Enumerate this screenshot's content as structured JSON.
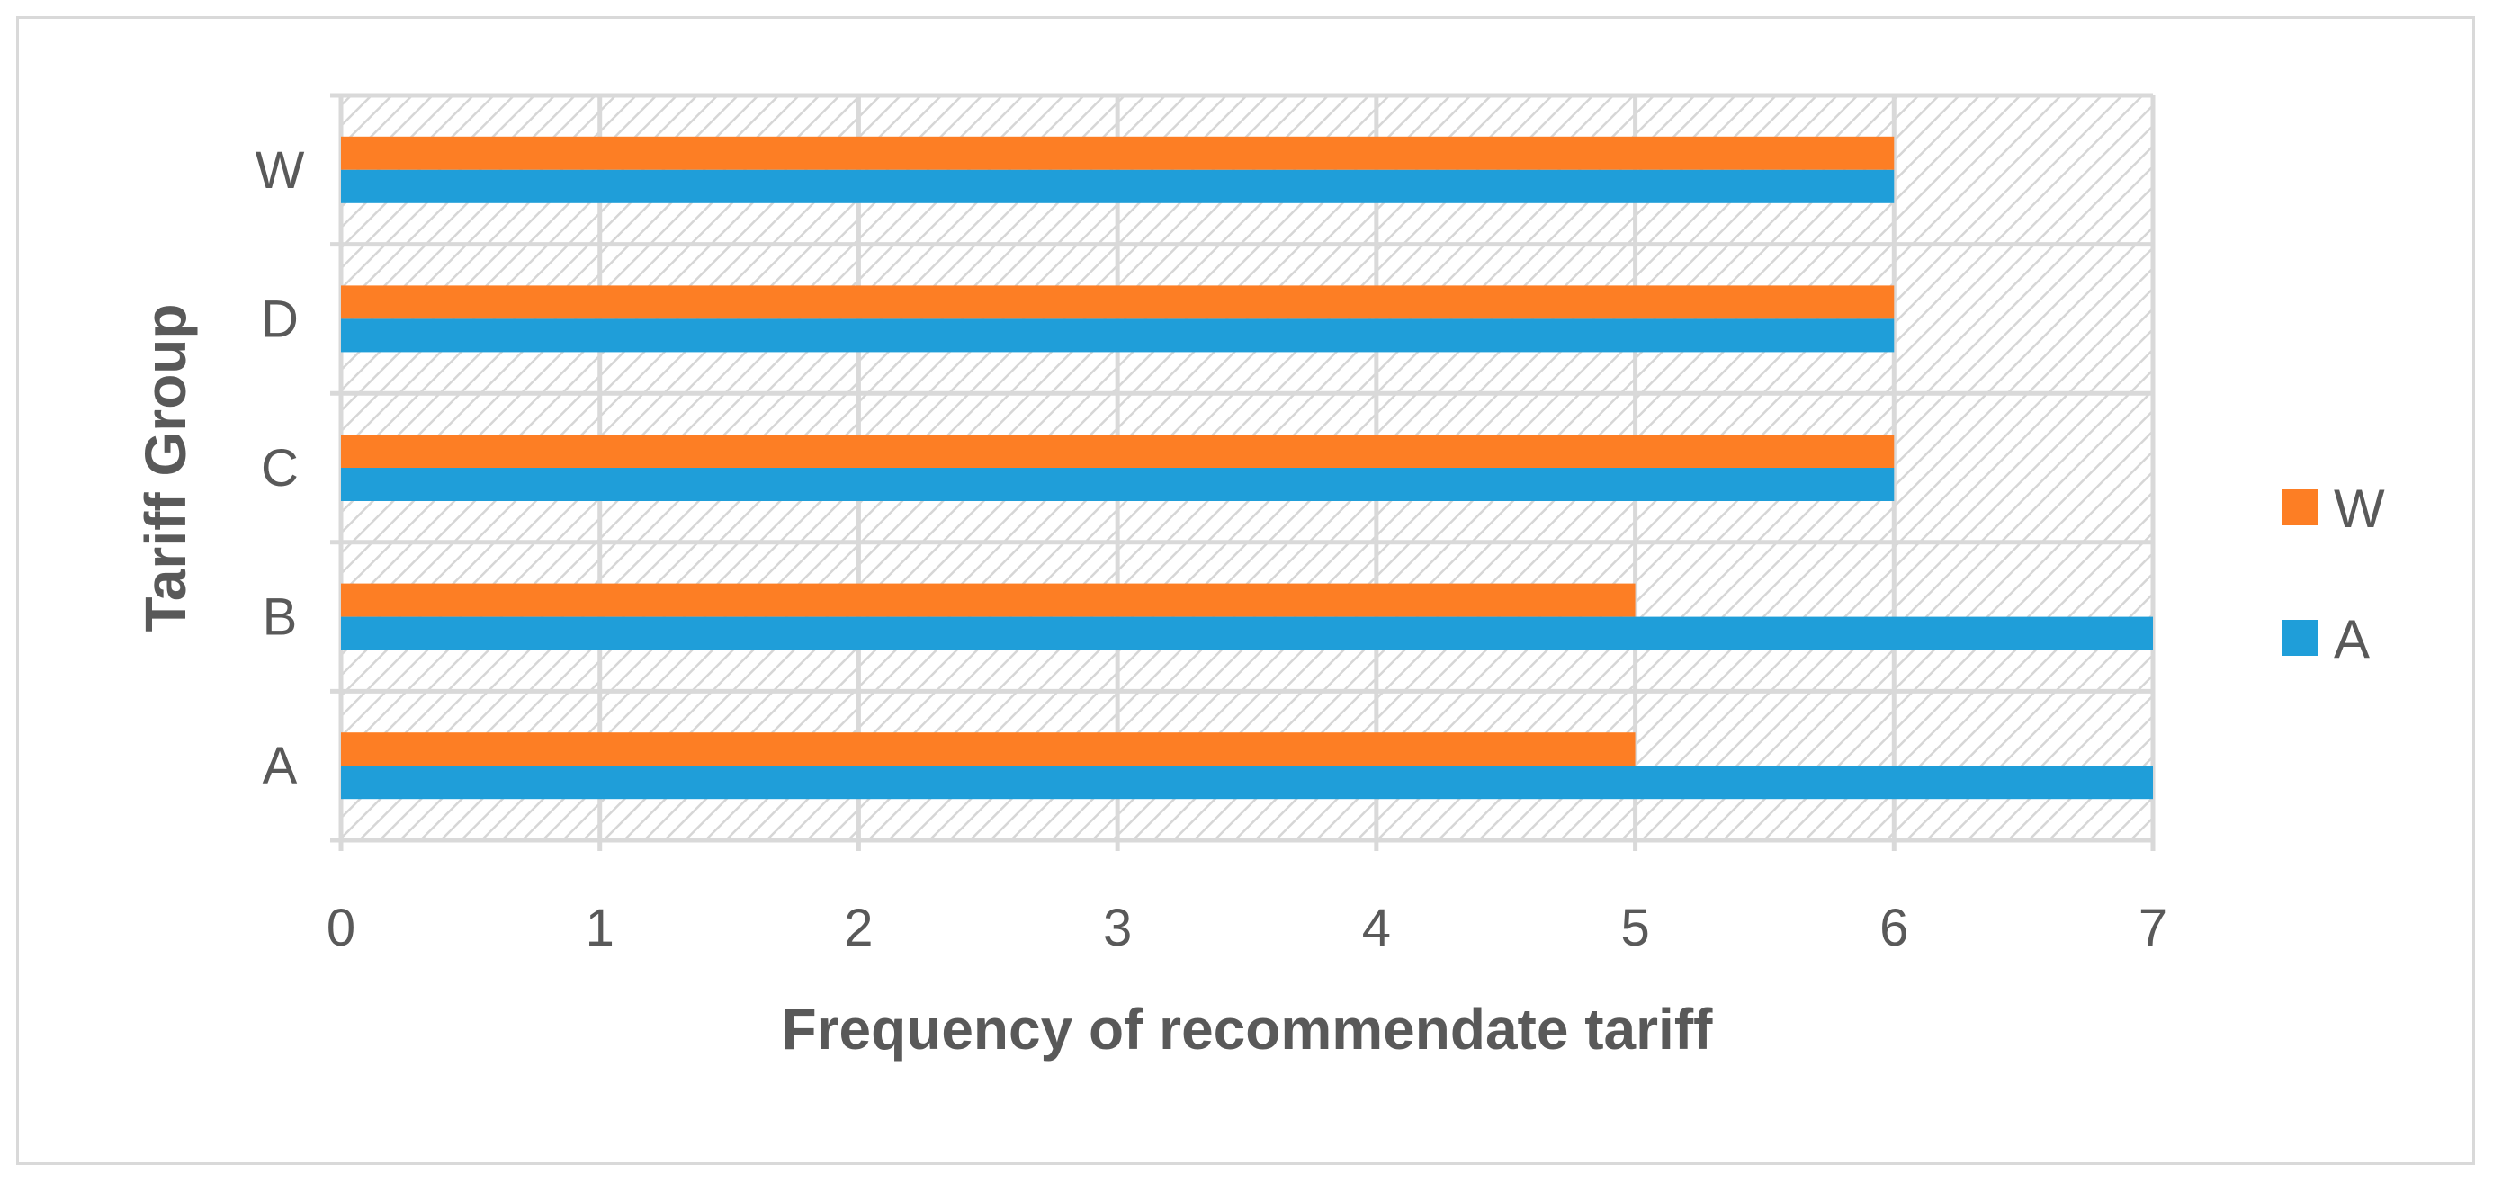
{
  "chart_data": {
    "type": "bar",
    "orientation": "horizontal",
    "categories": [
      "A",
      "B",
      "C",
      "D",
      "W"
    ],
    "series": [
      {
        "name": "A",
        "values": [
          7,
          7,
          6,
          6,
          6
        ],
        "color": "#1f9ed9"
      },
      {
        "name": "W",
        "values": [
          5,
          5,
          6,
          6,
          6
        ],
        "color": "#fd7e24"
      }
    ],
    "xlabel": "Frequency of recommendate tariff",
    "ylabel": "Tariff Group",
    "xlim": [
      0,
      7
    ],
    "xticks": [
      "0",
      "1",
      "2",
      "3",
      "4",
      "5",
      "6",
      "7"
    ],
    "grid": true,
    "legend_position": "right",
    "legend_order": [
      "W",
      "A"
    ]
  }
}
